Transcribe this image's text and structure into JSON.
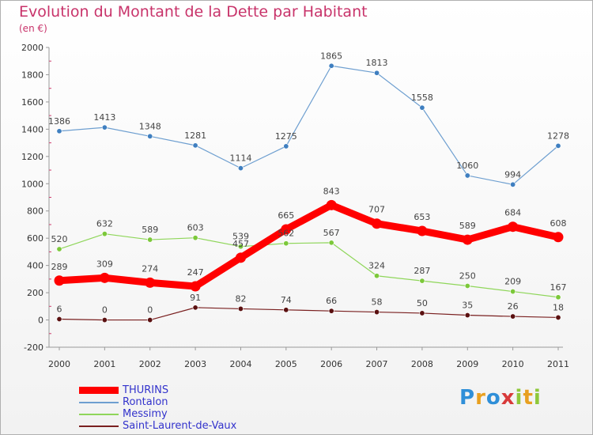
{
  "chart_data": {
    "type": "line",
    "title": "Evolution du Montant de la Dette par Habitant",
    "subtitle": "(en €)",
    "xlabel": "",
    "ylabel": "",
    "ylim": [
      -200,
      2000
    ],
    "yticks": [
      -200,
      0,
      200,
      400,
      600,
      800,
      1000,
      1200,
      1400,
      1600,
      1800,
      2000
    ],
    "x": [
      "2000",
      "2001",
      "2002",
      "2003",
      "2004",
      "2005",
      "2006",
      "2007",
      "2008",
      "2009",
      "2010",
      "2011"
    ],
    "grid": false,
    "legend_position": "bottom-left",
    "series": [
      {
        "name": "THURINS",
        "color": "#ff0000",
        "values": [
          289,
          309,
          274,
          247,
          457,
          665,
          843,
          707,
          653,
          589,
          684,
          608
        ]
      },
      {
        "name": "Rontalon",
        "color": "#6e9fd0",
        "values": [
          1386,
          1413,
          1348,
          1281,
          1114,
          1275,
          1865,
          1813,
          1558,
          1060,
          994,
          1278
        ]
      },
      {
        "name": "Messimy",
        "color": "#8fd65a",
        "values": [
          520,
          632,
          589,
          603,
          539,
          562,
          567,
          324,
          287,
          250,
          209,
          167
        ]
      },
      {
        "name": "Saint-Laurent-de-Vaux",
        "color": "#7a2020",
        "values": [
          6,
          0,
          0,
          91,
          82,
          74,
          66,
          58,
          50,
          35,
          26,
          18
        ]
      }
    ]
  },
  "brand": {
    "letters": [
      "P",
      "r",
      "o",
      "x",
      "i",
      "t",
      "i"
    ],
    "colors": [
      "#2f8fd8",
      "#e8a020",
      "#2f8fd8",
      "#d83a3a",
      "#8fc83a",
      "#e8a020",
      "#8fc83a"
    ]
  }
}
